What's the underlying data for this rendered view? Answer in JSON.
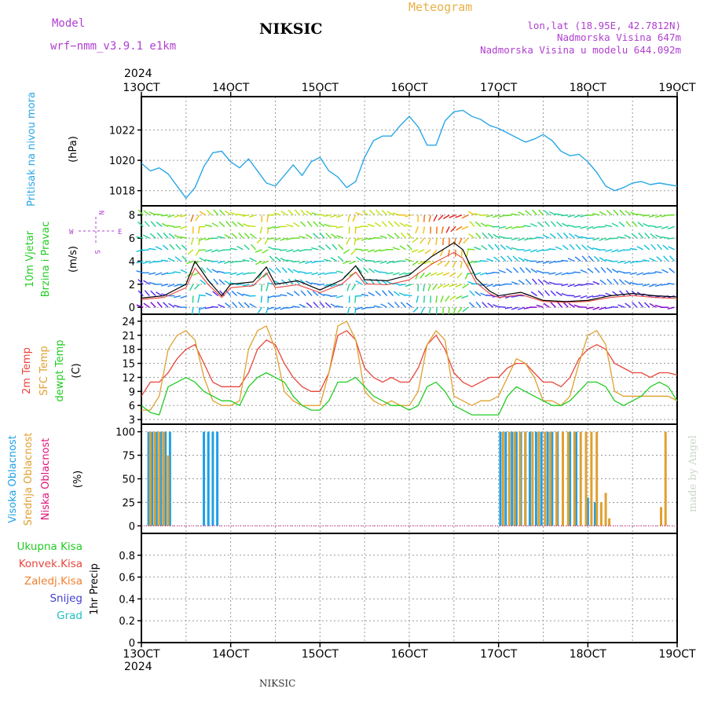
{
  "header": {
    "model_label": "Model",
    "model_name": "wrf−nmm_v3.9.1  e1km",
    "station": "NIKSIC",
    "product": "Meteogram",
    "coords": "lon,lat (18.95E, 42.7812N)",
    "elevation": "Nadmorska Visina 647m",
    "model_elevation": "Nadmorska Visina u modelu 644.092m",
    "footer_station": "NIKSIC",
    "credit": "made by Angel"
  },
  "time_axis": {
    "year": "2024",
    "ticks": [
      "13OCT",
      "14OCT",
      "15OCT",
      "16OCT",
      "17OCT",
      "18OCT",
      "19OCT"
    ],
    "day_start": 13,
    "day_end": 19
  },
  "colors": {
    "pressure": "#2aa7e6",
    "temp2m": "#e8463c",
    "sfc_temp": "#e0a030",
    "dewpoint": "#22cc22",
    "high_cloud": "#1ea0e6",
    "mid_cloud": "#e0a030",
    "low_cloud": "#e0147c",
    "purple": "#b040d0"
  },
  "panels": {
    "pressure": {
      "ylabel1": "Pritisak na nivou mora",
      "unit": "(hPa)",
      "ticks": [
        "1018",
        "1020",
        "1022"
      ]
    },
    "wind": {
      "ylabel1": "10m Vjetar",
      "ylabel2": "Brzina i Pravac",
      "unit": "(m/s)",
      "ticks": [
        "0",
        "2",
        "4",
        "6",
        "8"
      ],
      "compass_n": "N",
      "compass_s": "S",
      "compass_w": "W",
      "compass_e": "E"
    },
    "temp": {
      "ylabel1": "2m Temp",
      "ylabel2": "SFC Temp",
      "ylabel3": "dewpt Temp",
      "unit": "(C)",
      "ticks": [
        "3",
        "6",
        "9",
        "12",
        "15",
        "18",
        "21",
        "24"
      ]
    },
    "cloud": {
      "ylabel1": "Visoka Oblacnost",
      "ylabel2": "Srednja Oblacnost",
      "ylabel3": "Niska Oblacnost",
      "unit": "(%)",
      "ticks": [
        "0",
        "25",
        "50",
        "75",
        "100"
      ]
    },
    "precip": {
      "ylabel1": "1hr Precip",
      "unit": "(mm)",
      "ticks": [
        "0",
        "0.2",
        "0.4",
        "0.6",
        "0.8"
      ],
      "legend": [
        "Ukupna Kisa",
        "Konvek.Kisa",
        "Zaledj.Kisa",
        "Snijeg",
        "Grad"
      ],
      "legend_colors": [
        "#22cc22",
        "#e8463c",
        "#f08030",
        "#4040d0",
        "#20c0c0"
      ]
    }
  },
  "chart_data": [
    {
      "type": "line",
      "name": "sea-level-pressure",
      "ylim": [
        1017,
        1024.2
      ],
      "x_days": [
        0,
        0.1,
        0.2,
        0.3,
        0.4,
        0.5,
        0.6,
        0.7,
        0.8,
        0.9,
        1.0,
        1.1,
        1.2,
        1.3,
        1.4,
        1.5,
        1.6,
        1.7,
        1.8,
        1.9,
        2.0,
        2.1,
        2.2,
        2.3,
        2.4,
        2.5,
        2.6,
        2.7,
        2.8,
        2.9,
        3.0,
        3.1,
        3.2,
        3.3,
        3.4,
        3.5,
        3.6,
        3.7,
        3.8,
        3.9,
        4.0,
        4.1,
        4.2,
        4.3,
        4.4,
        4.5,
        4.6,
        4.7,
        4.8,
        4.9,
        5.0,
        5.1,
        5.2,
        5.3,
        5.4,
        5.5,
        5.6,
        5.7,
        5.8,
        5.9,
        6.0
      ],
      "values": [
        1019.8,
        1019.3,
        1019.5,
        1019.1,
        1018.3,
        1017.5,
        1018.2,
        1019.6,
        1020.5,
        1020.6,
        1019.9,
        1019.5,
        1020.1,
        1019.3,
        1018.5,
        1018.3,
        1019.0,
        1019.7,
        1019.0,
        1019.9,
        1020.2,
        1019.3,
        1018.9,
        1018.2,
        1018.6,
        1020.2,
        1021.3,
        1021.6,
        1021.6,
        1022.3,
        1022.9,
        1022.2,
        1021.0,
        1021.0,
        1022.6,
        1023.2,
        1023.3,
        1022.9,
        1022.7,
        1022.3,
        1022.1,
        1021.8,
        1021.5,
        1021.2,
        1021.4,
        1021.7,
        1021.3,
        1020.6,
        1020.3,
        1020.4,
        1019.9,
        1019.2,
        1018.3,
        1018.0,
        1018.2,
        1018.5,
        1018.6,
        1018.4,
        1018.5,
        1018.4,
        1018.3
      ]
    },
    {
      "type": "line",
      "name": "10m-wind-speed",
      "ylim": [
        -0.6,
        8.8
      ],
      "x_days": [
        0,
        0.25,
        0.5,
        0.6,
        0.75,
        0.9,
        1.0,
        1.25,
        1.4,
        1.5,
        1.75,
        2.0,
        2.25,
        2.4,
        2.5,
        2.75,
        3.0,
        3.25,
        3.5,
        3.6,
        3.75,
        3.9,
        4.0,
        4.25,
        4.5,
        4.75,
        5.0,
        5.25,
        5.5,
        5.75,
        6.0
      ],
      "values": [
        0.8,
        1.0,
        2.0,
        4.0,
        2.3,
        1.0,
        2.0,
        2.2,
        3.5,
        2.0,
        2.3,
        1.5,
        2.4,
        3.6,
        2.4,
        2.3,
        2.8,
        4.4,
        5.6,
        5.0,
        2.5,
        1.4,
        1.0,
        1.3,
        0.6,
        0.5,
        0.6,
        1.0,
        1.2,
        1.0,
        0.9
      ]
    },
    {
      "type": "line",
      "name": "temperatures",
      "ylim": [
        2,
        25.5
      ],
      "x_days": [
        0,
        0.1,
        0.2,
        0.3,
        0.4,
        0.5,
        0.6,
        0.7,
        0.8,
        0.9,
        1.0,
        1.1,
        1.2,
        1.3,
        1.4,
        1.5,
        1.6,
        1.7,
        1.8,
        1.9,
        2.0,
        2.1,
        2.2,
        2.3,
        2.4,
        2.5,
        2.6,
        2.7,
        2.8,
        2.9,
        3.0,
        3.1,
        3.2,
        3.3,
        3.4,
        3.5,
        3.6,
        3.7,
        3.8,
        3.9,
        4.0,
        4.1,
        4.2,
        4.3,
        4.4,
        4.5,
        4.6,
        4.7,
        4.8,
        4.9,
        5.0,
        5.1,
        5.2,
        5.3,
        5.4,
        5.5,
        5.6,
        5.7,
        5.8,
        5.9,
        6.0
      ],
      "series": [
        {
          "name": "2m Temp",
          "values": [
            8,
            11,
            11,
            13,
            16,
            18,
            19,
            15,
            11,
            10,
            10,
            10,
            13,
            18,
            20,
            19,
            15,
            12,
            10,
            9,
            9,
            13,
            21,
            22,
            20,
            14,
            12,
            11,
            12,
            11,
            11,
            14,
            19,
            21,
            18,
            13,
            11,
            10,
            11,
            12,
            12,
            14,
            15,
            15,
            13,
            11,
            11,
            10,
            12,
            16,
            18,
            19,
            18,
            15,
            14,
            13,
            13,
            12,
            13,
            13,
            12.5
          ]
        },
        {
          "name": "SFC Temp",
          "values": [
            5,
            5,
            8,
            18,
            21,
            22,
            20,
            12,
            7,
            6,
            6,
            7,
            18,
            22,
            23,
            18,
            9,
            7,
            6,
            6,
            6,
            13,
            23,
            24,
            20,
            9,
            7,
            6,
            7,
            6,
            6,
            9,
            19,
            22,
            20,
            8,
            7,
            6,
            7,
            7,
            8,
            12,
            16,
            15,
            12,
            7,
            7,
            6,
            8,
            15,
            21,
            22,
            19,
            9,
            8,
            8,
            8,
            8,
            8,
            8,
            7
          ]
        },
        {
          "name": "dewpt Temp",
          "values": [
            6,
            4.5,
            4,
            10,
            11,
            12,
            11,
            9,
            8,
            7,
            7,
            6,
            10,
            12,
            13,
            12,
            11,
            8,
            6,
            5,
            5,
            7,
            11,
            11,
            12,
            10,
            8,
            7,
            6,
            6,
            5,
            6,
            10,
            11,
            9,
            6,
            5,
            4,
            4,
            4,
            4,
            8,
            10,
            9,
            8,
            7,
            6,
            6,
            7,
            9,
            11,
            11,
            10,
            7,
            6,
            7,
            8,
            10,
            11,
            10,
            7
          ]
        }
      ]
    },
    {
      "type": "bar",
      "name": "cloud-cover",
      "ylim": [
        -8,
        108
      ],
      "series": [
        {
          "name": "Visoka Oblacnost",
          "bars": [
            [
              0.08,
              100
            ],
            [
              0.12,
              100
            ],
            [
              0.17,
              100
            ],
            [
              0.22,
              100
            ],
            [
              0.27,
              100
            ],
            [
              0.32,
              100
            ],
            [
              0.7,
              100
            ],
            [
              0.75,
              100
            ],
            [
              0.8,
              100
            ],
            [
              0.85,
              100
            ],
            [
              4.02,
              100
            ],
            [
              4.08,
              100
            ],
            [
              4.15,
              100
            ],
            [
              4.2,
              100
            ],
            [
              4.25,
              100
            ],
            [
              4.3,
              100
            ],
            [
              4.35,
              100
            ],
            [
              4.42,
              100
            ],
            [
              4.48,
              100
            ],
            [
              4.55,
              100
            ],
            [
              4.6,
              100
            ],
            [
              4.66,
              100
            ],
            [
              4.72,
              100
            ],
            [
              4.8,
              100
            ],
            [
              4.87,
              100
            ],
            [
              5.0,
              30
            ],
            [
              5.08,
              25
            ]
          ]
        },
        {
          "name": "Srednja Oblacnost",
          "bars": [
            [
              0.1,
              100
            ],
            [
              0.15,
              100
            ],
            [
              0.2,
              100
            ],
            [
              0.25,
              100
            ],
            [
              0.3,
              75
            ],
            [
              4.05,
              100
            ],
            [
              4.12,
              100
            ],
            [
              4.18,
              100
            ],
            [
              4.24,
              100
            ],
            [
              4.3,
              100
            ],
            [
              4.38,
              100
            ],
            [
              4.45,
              100
            ],
            [
              4.52,
              100
            ],
            [
              4.58,
              100
            ],
            [
              4.65,
              100
            ],
            [
              4.72,
              100
            ],
            [
              4.78,
              100
            ],
            [
              4.85,
              100
            ],
            [
              4.92,
              100
            ],
            [
              4.98,
              100
            ],
            [
              5.04,
              100
            ],
            [
              5.1,
              100
            ],
            [
              5.15,
              25
            ],
            [
              5.2,
              35
            ],
            [
              5.24,
              8
            ],
            [
              5.82,
              20
            ],
            [
              5.87,
              100
            ]
          ]
        },
        {
          "name": "Niska Oblacnost",
          "bars": []
        }
      ]
    },
    {
      "type": "bar",
      "name": "hourly-precipitation",
      "ylim": [
        0,
        1.0
      ],
      "series": [
        {
          "name": "Ukupna Kisa",
          "values": []
        },
        {
          "name": "Konvek.Kisa",
          "values": []
        },
        {
          "name": "Zaledj.Kisa",
          "values": []
        },
        {
          "name": "Snijeg",
          "values": []
        },
        {
          "name": "Grad",
          "values": []
        }
      ]
    }
  ]
}
